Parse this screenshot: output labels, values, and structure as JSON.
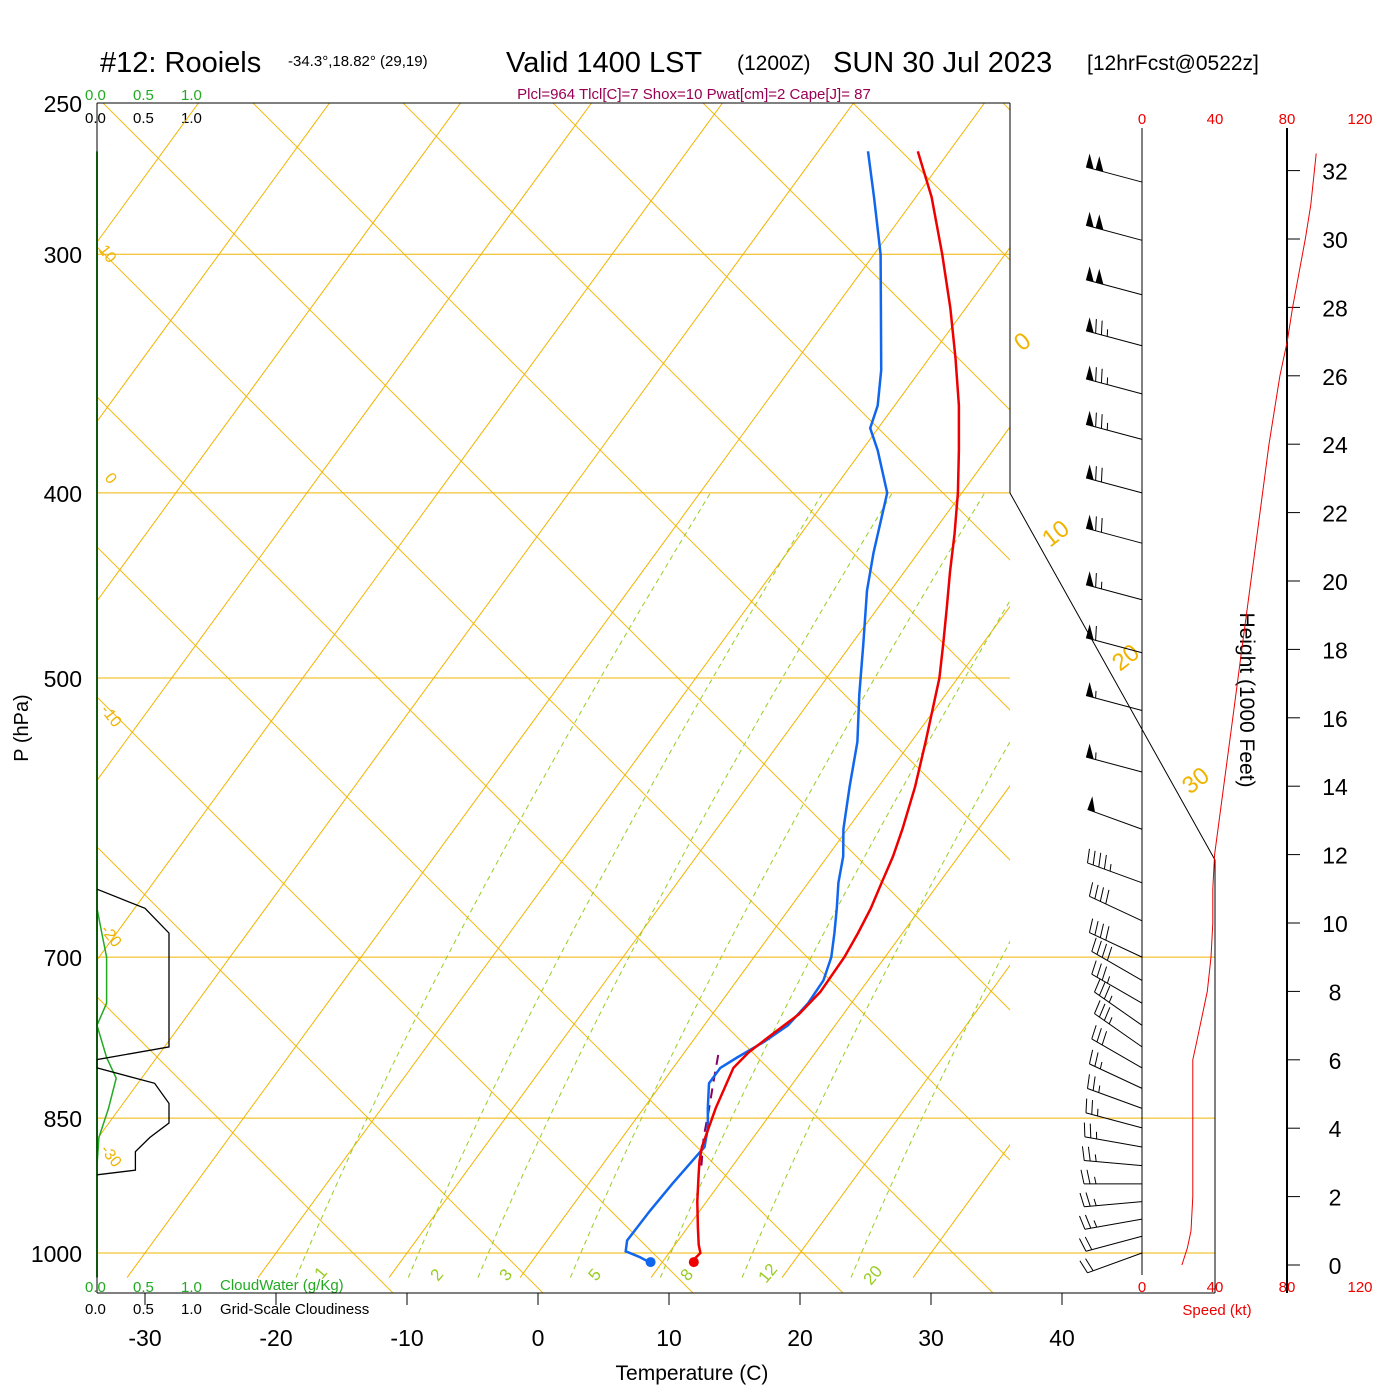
{
  "header": {
    "station": "#12: Rooiels",
    "coords": "-34.3°,18.82° (29,19)",
    "valid": "Valid 1400 LST",
    "zulu": "(1200Z)",
    "date": "SUN 30 Jul 2023",
    "forecast": "[12hrFcst@0522z]",
    "indices": "Plcl=964 Tlcl[C]=7 Shox=10 Pwat[cm]=2 Cape[J]= 87"
  },
  "colors": {
    "temperature": "#ee0000",
    "dewpoint": "#1166ee",
    "parcel": "#880066",
    "isotherm": "#f0b400",
    "dry_adiabat": "#9fcc22",
    "moist_adiabat": "#99cc22",
    "mixing_ratio": "#99cc22",
    "cloudwater": "#22aa22",
    "cloudiness": "#000000",
    "speed": "#ee0000",
    "indices": "#990055"
  },
  "cloud_scale": {
    "top_green": [
      "0.0",
      "0.5",
      "1.0"
    ],
    "top_black": [
      "0.0",
      "0.5",
      "1.0"
    ],
    "bottom_green": [
      "0.0",
      "0.5",
      "1.0"
    ],
    "bottom_black": [
      "0.0",
      "0.5",
      "1.0"
    ],
    "cloudwater_label": "CloudWater (g/Kg)",
    "cloudiness_label": "Grid-Scale Cloudiness"
  },
  "speed_axis": {
    "ticks_top": [
      "0",
      "40",
      "80",
      "120"
    ],
    "ticks_bottom": [
      "0",
      "40",
      "80",
      "120"
    ],
    "label": "Speed (kt)"
  },
  "isotherm_labels": [
    "10",
    "0",
    "-10",
    "-20",
    "-30",
    "0",
    "10",
    "20",
    "30"
  ],
  "mixing_ratio_labels": [
    "1",
    "2",
    "3",
    "5",
    "8",
    "12",
    "20"
  ],
  "chart_data": {
    "type": "skew-t",
    "x_axis": {
      "label": "Temperature (C)",
      "range": [
        -35,
        47
      ],
      "ticks": [
        -30,
        -20,
        -10,
        0,
        10,
        20,
        30,
        40
      ]
    },
    "y_axis": {
      "label": "P (hPa)",
      "range": [
        250,
        1030
      ],
      "scale": "log",
      "ticks": [
        250,
        300,
        400,
        500,
        700,
        850,
        1000
      ]
    },
    "height_axis": {
      "label": "Height (1000 Feet)",
      "ticks": [
        0,
        2,
        4,
        6,
        8,
        10,
        12,
        14,
        16,
        18,
        20,
        22,
        24,
        26,
        28,
        30,
        32
      ]
    },
    "temperature": [
      [
        1011,
        12.2
      ],
      [
        1000,
        12.4
      ],
      [
        990,
        11.8
      ],
      [
        970,
        10.8
      ],
      [
        940,
        9.3
      ],
      [
        910,
        7.9
      ],
      [
        895,
        7.2
      ],
      [
        880,
        6.6
      ],
      [
        840,
        5.5
      ],
      [
        800,
        4.6
      ],
      [
        785,
        4.9
      ],
      [
        770,
        5.6
      ],
      [
        750,
        6.6
      ],
      [
        730,
        7.0
      ],
      [
        700,
        6.9
      ],
      [
        680,
        6.6
      ],
      [
        660,
        6.2
      ],
      [
        640,
        5.6
      ],
      [
        620,
        5.0
      ],
      [
        600,
        4.2
      ],
      [
        570,
        2.8
      ],
      [
        540,
        1.1
      ],
      [
        500,
        -1.4
      ],
      [
        480,
        -3.0
      ],
      [
        460,
        -4.7
      ],
      [
        440,
        -6.5
      ],
      [
        420,
        -8.3
      ],
      [
        400,
        -10.3
      ],
      [
        380,
        -12.6
      ],
      [
        360,
        -15.1
      ],
      [
        340,
        -18.0
      ],
      [
        320,
        -21.2
      ],
      [
        300,
        -24.8
      ],
      [
        280,
        -28.8
      ],
      [
        265,
        -32.4
      ]
    ],
    "dewpoint": [
      [
        1011,
        9.0
      ],
      [
        1005,
        8.0
      ],
      [
        998,
        6.6
      ],
      [
        985,
        6.1
      ],
      [
        950,
        6.2
      ],
      [
        920,
        6.4
      ],
      [
        890,
        6.7
      ],
      [
        880,
        6.8
      ],
      [
        860,
        6.0
      ],
      [
        840,
        4.9
      ],
      [
        815,
        3.6
      ],
      [
        800,
        3.6
      ],
      [
        790,
        4.3
      ],
      [
        775,
        5.5
      ],
      [
        760,
        6.4
      ],
      [
        740,
        6.7
      ],
      [
        720,
        6.6
      ],
      [
        700,
        5.9
      ],
      [
        680,
        4.8
      ],
      [
        660,
        3.6
      ],
      [
        640,
        2.3
      ],
      [
        620,
        1.2
      ],
      [
        600,
        -0.3
      ],
      [
        570,
        -2.2
      ],
      [
        540,
        -4.1
      ],
      [
        510,
        -6.6
      ],
      [
        480,
        -9.1
      ],
      [
        450,
        -11.8
      ],
      [
        430,
        -13.4
      ],
      [
        400,
        -15.7
      ],
      [
        380,
        -18.8
      ],
      [
        370,
        -20.6
      ],
      [
        360,
        -21.3
      ],
      [
        345,
        -23.0
      ],
      [
        320,
        -26.5
      ],
      [
        300,
        -29.5
      ],
      [
        280,
        -33.2
      ],
      [
        265,
        -36.2
      ]
    ],
    "parcel": [
      [
        900,
        7.6
      ],
      [
        870,
        6.2
      ],
      [
        840,
        5.0
      ],
      [
        810,
        3.7
      ],
      [
        785,
        2.6
      ]
    ],
    "surface_temperature": 12.4,
    "surface_dewpoint": 9.1,
    "cloudwater_profile": [
      [
        1030,
        0.0
      ],
      [
        900,
        0.0
      ],
      [
        870,
        0.02
      ],
      [
        840,
        0.12
      ],
      [
        810,
        0.2
      ],
      [
        790,
        0.1
      ],
      [
        760,
        0.0
      ],
      [
        740,
        0.1
      ],
      [
        700,
        0.1
      ],
      [
        680,
        0.05
      ],
      [
        660,
        0.0
      ]
    ],
    "cloudiness_profile": [
      [
        910,
        0.0
      ],
      [
        905,
        0.4
      ],
      [
        885,
        0.4
      ],
      [
        870,
        0.55
      ],
      [
        855,
        0.75
      ],
      [
        835,
        0.75
      ],
      [
        815,
        0.6
      ],
      [
        800,
        0.0
      ],
      [
        792,
        0.0
      ],
      [
        780,
        0.75
      ],
      [
        725,
        0.75
      ],
      [
        700,
        0.75
      ],
      [
        680,
        0.75
      ],
      [
        660,
        0.5
      ],
      [
        645,
        0.0
      ]
    ],
    "wind_speed_profile": [
      [
        0,
        22
      ],
      [
        0.5,
        25
      ],
      [
        1,
        27
      ],
      [
        2,
        28
      ],
      [
        4,
        28
      ],
      [
        6,
        28
      ],
      [
        6.5,
        30
      ],
      [
        8,
        36
      ],
      [
        9,
        38
      ],
      [
        10,
        39
      ],
      [
        11,
        39
      ],
      [
        12,
        40
      ],
      [
        14,
        45
      ],
      [
        16,
        50
      ],
      [
        18,
        55
      ],
      [
        20,
        60
      ],
      [
        22,
        65
      ],
      [
        24,
        70
      ],
      [
        26,
        76
      ],
      [
        27,
        80
      ],
      [
        28,
        83
      ],
      [
        30,
        90
      ],
      [
        31,
        93
      ],
      [
        32.5,
        96
      ]
    ],
    "wind_barbs": [
      {
        "p": 1000,
        "dir": 250,
        "spd": 20
      },
      {
        "p": 980,
        "dir": 255,
        "spd": 22
      },
      {
        "p": 960,
        "dir": 260,
        "spd": 23
      },
      {
        "p": 940,
        "dir": 265,
        "spd": 25
      },
      {
        "p": 920,
        "dir": 270,
        "spd": 25
      },
      {
        "p": 900,
        "dir": 275,
        "spd": 25
      },
      {
        "p": 880,
        "dir": 280,
        "spd": 25
      },
      {
        "p": 860,
        "dir": 285,
        "spd": 25
      },
      {
        "p": 840,
        "dir": 290,
        "spd": 25
      },
      {
        "p": 820,
        "dir": 295,
        "spd": 25
      },
      {
        "p": 800,
        "dir": 300,
        "spd": 30
      },
      {
        "p": 780,
        "dir": 305,
        "spd": 35
      },
      {
        "p": 760,
        "dir": 305,
        "spd": 35
      },
      {
        "p": 740,
        "dir": 300,
        "spd": 35
      },
      {
        "p": 720,
        "dir": 300,
        "spd": 40
      },
      {
        "p": 700,
        "dir": 295,
        "spd": 40
      },
      {
        "p": 670,
        "dir": 295,
        "spd": 40
      },
      {
        "p": 640,
        "dir": 290,
        "spd": 45
      },
      {
        "p": 600,
        "dir": 290,
        "spd": 50
      },
      {
        "p": 560,
        "dir": 285,
        "spd": 55
      },
      {
        "p": 520,
        "dir": 285,
        "spd": 55
      },
      {
        "p": 485,
        "dir": 285,
        "spd": 60
      },
      {
        "p": 455,
        "dir": 285,
        "spd": 65
      },
      {
        "p": 425,
        "dir": 285,
        "spd": 70
      },
      {
        "p": 400,
        "dir": 285,
        "spd": 70
      },
      {
        "p": 375,
        "dir": 285,
        "spd": 75
      },
      {
        "p": 355,
        "dir": 285,
        "spd": 75
      },
      {
        "p": 335,
        "dir": 285,
        "spd": 75
      },
      {
        "p": 315,
        "dir": 285,
        "spd": 100
      },
      {
        "p": 295,
        "dir": 285,
        "spd": 100
      },
      {
        "p": 275,
        "dir": 285,
        "spd": 100
      }
    ]
  }
}
